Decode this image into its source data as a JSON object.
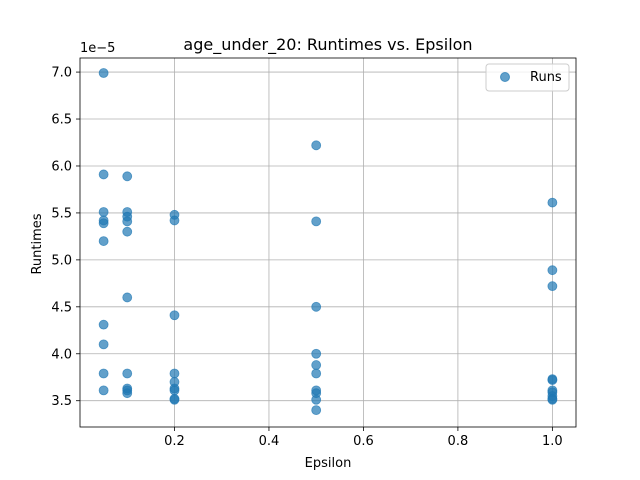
{
  "chart_data": {
    "type": "scatter",
    "title": "age_under_20: Runtimes vs. Epsilon",
    "xlabel": "Epsilon",
    "ylabel": "Runtimes",
    "y_offset_label": "1e−5",
    "xlim": [
      0.0,
      1.05
    ],
    "ylim": [
      3.22,
      7.15
    ],
    "x_ticks": [
      0.2,
      0.4,
      0.6,
      0.8,
      1.0
    ],
    "x_tick_labels": [
      "0.2",
      "0.4",
      "0.6",
      "0.8",
      "1.0"
    ],
    "y_ticks": [
      3.5,
      4.0,
      4.5,
      5.0,
      5.5,
      6.0,
      6.5,
      7.0
    ],
    "y_tick_labels": [
      "3.5",
      "4.0",
      "4.5",
      "5.0",
      "5.5",
      "6.0",
      "6.5",
      "7.0"
    ],
    "y_unit_scale": "1e-5",
    "grid": true,
    "legend_position": "top-right",
    "marker_color": "#1f77b4",
    "marker_alpha": 0.7,
    "series": [
      {
        "name": "Runs",
        "x": [
          0.05,
          0.05,
          0.05,
          0.05,
          0.05,
          0.05,
          0.05,
          0.05,
          0.05,
          0.05,
          0.1,
          0.1,
          0.1,
          0.1,
          0.1,
          0.1,
          0.1,
          0.1,
          0.1,
          0.1,
          0.2,
          0.2,
          0.2,
          0.2,
          0.2,
          0.2,
          0.2,
          0.2,
          0.2,
          0.5,
          0.5,
          0.5,
          0.5,
          0.5,
          0.5,
          0.5,
          0.5,
          0.5,
          0.5,
          1.0,
          1.0,
          1.0,
          1.0,
          1.0,
          1.0,
          1.0,
          1.0,
          1.0,
          1.0
        ],
        "y": [
          6.99,
          5.91,
          5.51,
          5.42,
          5.39,
          5.2,
          4.31,
          4.1,
          3.79,
          3.61,
          5.89,
          5.51,
          5.46,
          5.41,
          5.3,
          4.6,
          3.79,
          3.63,
          3.61,
          3.58,
          5.48,
          5.42,
          4.41,
          3.79,
          3.7,
          3.63,
          3.61,
          3.52,
          3.51,
          6.22,
          5.41,
          4.5,
          4.0,
          3.88,
          3.79,
          3.61,
          3.58,
          3.51,
          3.4,
          5.61,
          4.89,
          4.72,
          3.73,
          3.72,
          3.61,
          3.59,
          3.55,
          3.52,
          3.51
        ]
      }
    ]
  }
}
